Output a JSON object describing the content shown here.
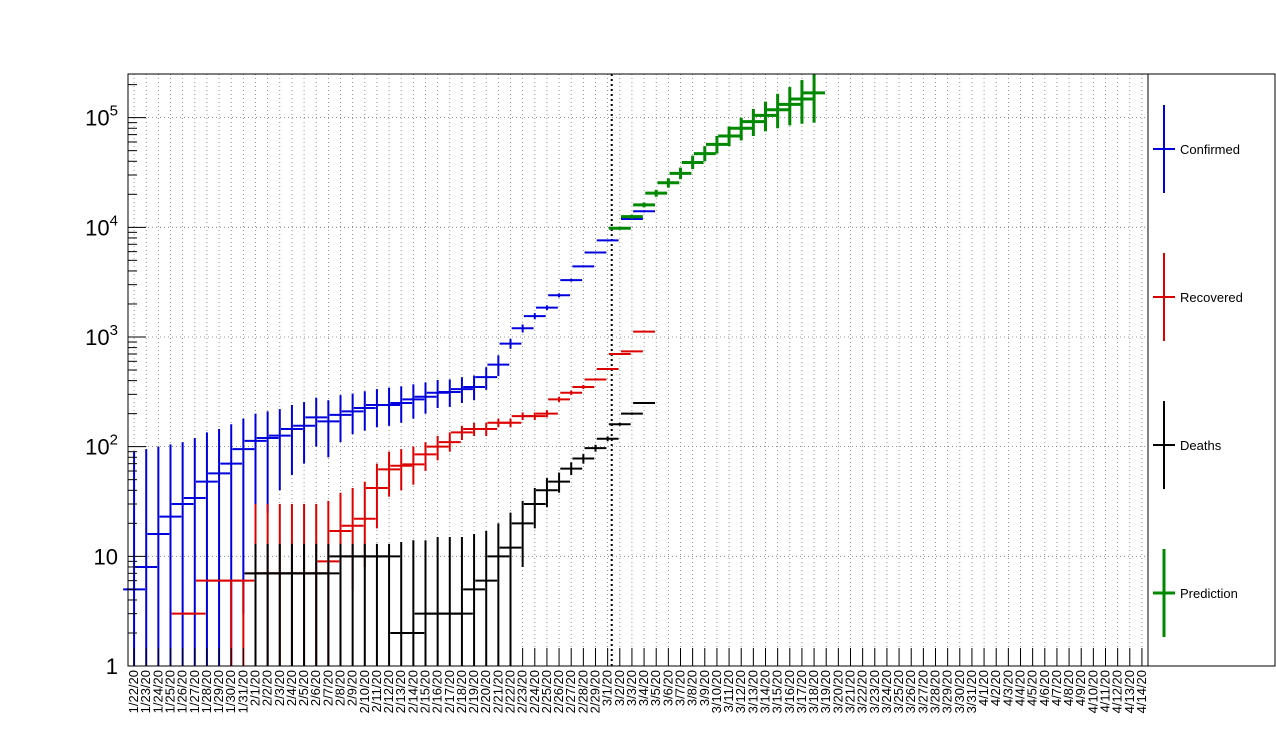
{
  "chart_data": {
    "type": "scatter",
    "y_scale": "log",
    "ylim": [
      1,
      250000
    ],
    "grid": true,
    "legend_position": "right",
    "title": "",
    "xlabel": "",
    "ylabel": "",
    "y_ticks": [
      {
        "value": 1,
        "base": "1",
        "exp": ""
      },
      {
        "value": 10,
        "base": "10",
        "exp": ""
      },
      {
        "value": 100,
        "base": "10",
        "exp": "2"
      },
      {
        "value": 1000,
        "base": "10",
        "exp": "3"
      },
      {
        "value": 10000,
        "base": "10",
        "exp": "4"
      },
      {
        "value": 100000,
        "base": "10",
        "exp": "5"
      }
    ],
    "x_labels": [
      "1/22/20",
      "1/23/20",
      "1/24/20",
      "1/25/20",
      "1/26/20",
      "1/27/20",
      "1/28/20",
      "1/29/20",
      "1/30/20",
      "1/31/20",
      "2/1/20",
      "2/2/20",
      "2/3/20",
      "2/4/20",
      "2/5/20",
      "2/6/20",
      "2/7/20",
      "2/8/20",
      "2/9/20",
      "2/10/20",
      "2/11/20",
      "2/12/20",
      "2/13/20",
      "2/14/20",
      "2/15/20",
      "2/16/20",
      "2/17/20",
      "2/18/20",
      "2/19/20",
      "2/20/20",
      "2/21/20",
      "2/22/20",
      "2/23/20",
      "2/24/20",
      "2/25/20",
      "2/26/20",
      "2/27/20",
      "2/28/20",
      "2/29/20",
      "3/1/20",
      "3/2/20",
      "3/3/20",
      "3/4/20",
      "3/5/20",
      "3/6/20",
      "3/7/20",
      "3/8/20",
      "3/9/20",
      "3/10/20",
      "3/11/20",
      "3/12/20",
      "3/13/20",
      "3/14/20",
      "3/15/20",
      "3/16/20",
      "3/17/20",
      "3/18/20",
      "3/19/20",
      "3/20/20",
      "3/21/20",
      "3/22/20",
      "3/23/20",
      "3/24/20",
      "3/25/20",
      "3/26/20",
      "3/27/20",
      "3/28/20",
      "3/29/20",
      "3/30/20",
      "3/31/20",
      "4/1/20",
      "4/2/20",
      "4/3/20",
      "4/4/20",
      "4/5/20",
      "4/6/20",
      "4/7/20",
      "4/8/20",
      "4/9/20",
      "4/10/20",
      "4/11/20",
      "4/12/20",
      "4/13/20",
      "4/14/20"
    ],
    "vertical_marker": {
      "date": "3/2/20",
      "style": "dotted",
      "color": "#000000"
    },
    "series": [
      {
        "name": "Confirmed",
        "color": "#0000dd",
        "points": [
          {
            "x": "1/22/20",
            "y": 5,
            "lo": 1,
            "hi": 90
          },
          {
            "x": "1/23/20",
            "y": 8,
            "lo": 1,
            "hi": 95
          },
          {
            "x": "1/24/20",
            "y": 16,
            "lo": 1,
            "hi": 100
          },
          {
            "x": "1/25/20",
            "y": 23,
            "lo": 1,
            "hi": 105
          },
          {
            "x": "1/26/20",
            "y": 30,
            "lo": 1,
            "hi": 110
          },
          {
            "x": "1/27/20",
            "y": 34,
            "lo": 1,
            "hi": 120
          },
          {
            "x": "1/28/20",
            "y": 48,
            "lo": 1,
            "hi": 135
          },
          {
            "x": "1/29/20",
            "y": 57,
            "lo": 1,
            "hi": 145
          },
          {
            "x": "1/30/20",
            "y": 70,
            "lo": 1,
            "hi": 160
          },
          {
            "x": "1/31/20",
            "y": 95,
            "lo": 3,
            "hi": 180
          },
          {
            "x": "2/1/20",
            "y": 113,
            "lo": 14,
            "hi": 200
          },
          {
            "x": "2/2/20",
            "y": 120,
            "lo": 25,
            "hi": 210
          },
          {
            "x": "2/3/20",
            "y": 126,
            "lo": 40,
            "hi": 220
          },
          {
            "x": "2/4/20",
            "y": 145,
            "lo": 55,
            "hi": 240
          },
          {
            "x": "2/5/20",
            "y": 155,
            "lo": 70,
            "hi": 255
          },
          {
            "x": "2/6/20",
            "y": 185,
            "lo": 100,
            "hi": 280
          },
          {
            "x": "2/7/20",
            "y": 170,
            "lo": 80,
            "hi": 265
          },
          {
            "x": "2/8/20",
            "y": 195,
            "lo": 110,
            "hi": 295
          },
          {
            "x": "2/9/20",
            "y": 210,
            "lo": 130,
            "hi": 305
          },
          {
            "x": "2/10/20",
            "y": 225,
            "lo": 140,
            "hi": 320
          },
          {
            "x": "2/11/20",
            "y": 240,
            "lo": 150,
            "hi": 335
          },
          {
            "x": "2/12/20",
            "y": 240,
            "lo": 155,
            "hi": 345
          },
          {
            "x": "2/13/20",
            "y": 250,
            "lo": 165,
            "hi": 355
          },
          {
            "x": "2/14/20",
            "y": 270,
            "lo": 180,
            "hi": 370
          },
          {
            "x": "2/15/20",
            "y": 285,
            "lo": 200,
            "hi": 385
          },
          {
            "x": "2/16/20",
            "y": 310,
            "lo": 225,
            "hi": 405
          },
          {
            "x": "2/17/20",
            "y": 315,
            "lo": 230,
            "hi": 410
          },
          {
            "x": "2/18/20",
            "y": 335,
            "lo": 250,
            "hi": 430
          },
          {
            "x": "2/19/20",
            "y": 350,
            "lo": 265,
            "hi": 445
          },
          {
            "x": "2/20/20",
            "y": 430,
            "lo": 330,
            "hi": 530
          },
          {
            "x": "2/21/20",
            "y": 560,
            "lo": 440,
            "hi": 680
          },
          {
            "x": "2/22/20",
            "y": 870,
            "lo": 780,
            "hi": 960
          },
          {
            "x": "2/23/20",
            "y": 1200,
            "lo": 1100,
            "hi": 1300
          },
          {
            "x": "2/24/20",
            "y": 1550,
            "lo": 1450,
            "hi": 1650
          },
          {
            "x": "2/25/20",
            "y": 1850,
            "lo": 1760,
            "hi": 1940
          },
          {
            "x": "2/26/20",
            "y": 2400,
            "lo": 2300,
            "hi": 2500
          },
          {
            "x": "2/27/20",
            "y": 3300,
            "lo": 3200,
            "hi": 3400
          },
          {
            "x": "2/28/20",
            "y": 4400,
            "lo": 4300,
            "hi": 4500
          },
          {
            "x": "2/29/20",
            "y": 5900,
            "lo": 5800,
            "hi": 6000
          },
          {
            "x": "3/1/20",
            "y": 7600,
            "lo": 7450,
            "hi": 7750
          },
          {
            "x": "3/2/20",
            "y": 9800,
            "lo": 9600,
            "hi": 10000
          },
          {
            "x": "3/3/20",
            "y": 11900,
            "lo": 11700,
            "hi": 12100
          },
          {
            "x": "3/4/20",
            "y": 14000,
            "lo": 13700,
            "hi": 14300
          }
        ]
      },
      {
        "name": "Recovered",
        "color": "#dd0000",
        "points": [
          {
            "x": "1/26/20",
            "y": 3,
            "lo": 3,
            "hi": 3
          },
          {
            "x": "1/27/20",
            "y": 3,
            "lo": 3,
            "hi": 3
          },
          {
            "x": "1/28/20",
            "y": 6,
            "lo": 6,
            "hi": 6
          },
          {
            "x": "1/29/20",
            "y": 6,
            "lo": 6,
            "hi": 6
          },
          {
            "x": "1/30/20",
            "y": 6,
            "lo": 1,
            "hi": 6
          },
          {
            "x": "1/31/20",
            "y": 6,
            "lo": 1,
            "hi": 6
          },
          {
            "x": "2/1/20",
            "y": 7,
            "lo": 1,
            "hi": 30
          },
          {
            "x": "2/2/20",
            "y": 7,
            "lo": 1,
            "hi": 30
          },
          {
            "x": "2/3/20",
            "y": 7,
            "lo": 1,
            "hi": 30
          },
          {
            "x": "2/4/20",
            "y": 7,
            "lo": 1,
            "hi": 30
          },
          {
            "x": "2/5/20",
            "y": 7,
            "lo": 1,
            "hi": 30
          },
          {
            "x": "2/6/20",
            "y": 7,
            "lo": 1,
            "hi": 30
          },
          {
            "x": "2/7/20",
            "y": 9,
            "lo": 1,
            "hi": 32
          },
          {
            "x": "2/8/20",
            "y": 17,
            "lo": 1,
            "hi": 38
          },
          {
            "x": "2/9/20",
            "y": 19,
            "lo": 5,
            "hi": 42
          },
          {
            "x": "2/10/20",
            "y": 22,
            "lo": 8,
            "hi": 48
          },
          {
            "x": "2/11/20",
            "y": 42,
            "lo": 18,
            "hi": 70
          },
          {
            "x": "2/12/20",
            "y": 62,
            "lo": 35,
            "hi": 90
          },
          {
            "x": "2/13/20",
            "y": 67,
            "lo": 40,
            "hi": 95
          },
          {
            "x": "2/14/20",
            "y": 69,
            "lo": 45,
            "hi": 100
          },
          {
            "x": "2/15/20",
            "y": 85,
            "lo": 60,
            "hi": 110
          },
          {
            "x": "2/16/20",
            "y": 100,
            "lo": 75,
            "hi": 125
          },
          {
            "x": "2/17/20",
            "y": 110,
            "lo": 90,
            "hi": 135
          },
          {
            "x": "2/18/20",
            "y": 135,
            "lo": 115,
            "hi": 155
          },
          {
            "x": "2/19/20",
            "y": 145,
            "lo": 125,
            "hi": 165
          },
          {
            "x": "2/20/20",
            "y": 145,
            "lo": 125,
            "hi": 165
          },
          {
            "x": "2/21/20",
            "y": 165,
            "lo": 150,
            "hi": 180
          },
          {
            "x": "2/22/20",
            "y": 165,
            "lo": 150,
            "hi": 180
          },
          {
            "x": "2/23/20",
            "y": 190,
            "lo": 175,
            "hi": 205
          },
          {
            "x": "2/24/20",
            "y": 190,
            "lo": 175,
            "hi": 205
          },
          {
            "x": "2/25/20",
            "y": 200,
            "lo": 185,
            "hi": 215
          },
          {
            "x": "2/26/20",
            "y": 270,
            "lo": 255,
            "hi": 285
          },
          {
            "x": "2/27/20",
            "y": 310,
            "lo": 295,
            "hi": 325
          },
          {
            "x": "2/28/20",
            "y": 350,
            "lo": 335,
            "hi": 365
          },
          {
            "x": "2/29/20",
            "y": 410,
            "lo": 400,
            "hi": 420
          },
          {
            "x": "3/1/20",
            "y": 510,
            "lo": 500,
            "hi": 520
          },
          {
            "x": "3/2/20",
            "y": 700,
            "lo": 690,
            "hi": 710
          },
          {
            "x": "3/3/20",
            "y": 740,
            "lo": 730,
            "hi": 750
          },
          {
            "x": "3/4/20",
            "y": 1120,
            "lo": 1110,
            "hi": 1130
          }
        ]
      },
      {
        "name": "Deaths",
        "color": "#000000",
        "points": [
          {
            "x": "2/1/20",
            "y": 7,
            "lo": 1,
            "hi": 13
          },
          {
            "x": "2/2/20",
            "y": 7,
            "lo": 1,
            "hi": 13
          },
          {
            "x": "2/3/20",
            "y": 7,
            "lo": 1,
            "hi": 13
          },
          {
            "x": "2/4/20",
            "y": 7,
            "lo": 1,
            "hi": 13
          },
          {
            "x": "2/5/20",
            "y": 7,
            "lo": 1,
            "hi": 13
          },
          {
            "x": "2/6/20",
            "y": 7,
            "lo": 1,
            "hi": 13
          },
          {
            "x": "2/7/20",
            "y": 7,
            "lo": 1,
            "hi": 13
          },
          {
            "x": "2/8/20",
            "y": 10,
            "lo": 1,
            "hi": 13
          },
          {
            "x": "2/9/20",
            "y": 10,
            "lo": 1,
            "hi": 13
          },
          {
            "x": "2/10/20",
            "y": 10,
            "lo": 1,
            "hi": 13
          },
          {
            "x": "2/11/20",
            "y": 10,
            "lo": 1,
            "hi": 13
          },
          {
            "x": "2/12/20",
            "y": 10,
            "lo": 1,
            "hi": 13
          },
          {
            "x": "2/13/20",
            "y": 2,
            "lo": 1,
            "hi": 13.5
          },
          {
            "x": "2/14/20",
            "y": 2,
            "lo": 1,
            "hi": 14
          },
          {
            "x": "2/15/20",
            "y": 3,
            "lo": 1,
            "hi": 14
          },
          {
            "x": "2/16/20",
            "y": 3,
            "lo": 1,
            "hi": 15
          },
          {
            "x": "2/17/20",
            "y": 3,
            "lo": 1,
            "hi": 15
          },
          {
            "x": "2/18/20",
            "y": 3,
            "lo": 1,
            "hi": 15
          },
          {
            "x": "2/19/20",
            "y": 5,
            "lo": 1,
            "hi": 16
          },
          {
            "x": "2/20/20",
            "y": 6,
            "lo": 1,
            "hi": 17
          },
          {
            "x": "2/21/20",
            "y": 10,
            "lo": 1,
            "hi": 20
          },
          {
            "x": "2/22/20",
            "y": 12,
            "lo": 1,
            "hi": 25
          },
          {
            "x": "2/23/20",
            "y": 20,
            "lo": 8,
            "hi": 32
          },
          {
            "x": "2/24/20",
            "y": 30,
            "lo": 18,
            "hi": 42
          },
          {
            "x": "2/25/20",
            "y": 40,
            "lo": 28,
            "hi": 52
          },
          {
            "x": "2/26/20",
            "y": 48,
            "lo": 38,
            "hi": 58
          },
          {
            "x": "2/27/20",
            "y": 63,
            "lo": 55,
            "hi": 72
          },
          {
            "x": "2/28/20",
            "y": 78,
            "lo": 70,
            "hi": 86
          },
          {
            "x": "2/29/20",
            "y": 97,
            "lo": 90,
            "hi": 104
          },
          {
            "x": "3/1/20",
            "y": 118,
            "lo": 112,
            "hi": 124
          },
          {
            "x": "3/2/20",
            "y": 160,
            "lo": 155,
            "hi": 165
          },
          {
            "x": "3/3/20",
            "y": 200,
            "lo": 195,
            "hi": 205
          },
          {
            "x": "3/4/20",
            "y": 250,
            "lo": 245,
            "hi": 255
          }
        ]
      },
      {
        "name": "Prediction",
        "color": "#008800",
        "points": [
          {
            "x": "3/2/20",
            "y": 9800,
            "lo": 9500,
            "hi": 10100
          },
          {
            "x": "3/3/20",
            "y": 12500,
            "lo": 12000,
            "hi": 13000
          },
          {
            "x": "3/4/20",
            "y": 16000,
            "lo": 15200,
            "hi": 16800
          },
          {
            "x": "3/5/20",
            "y": 20500,
            "lo": 19000,
            "hi": 22000
          },
          {
            "x": "3/6/20",
            "y": 25500,
            "lo": 23000,
            "hi": 28000
          },
          {
            "x": "3/7/20",
            "y": 31000,
            "lo": 27500,
            "hi": 35000
          },
          {
            "x": "3/8/20",
            "y": 39000,
            "lo": 34000,
            "hi": 45000
          },
          {
            "x": "3/9/20",
            "y": 47000,
            "lo": 40000,
            "hi": 55000
          },
          {
            "x": "3/10/20",
            "y": 57000,
            "lo": 47000,
            "hi": 68000
          },
          {
            "x": "3/11/20",
            "y": 68000,
            "lo": 55000,
            "hi": 83000
          },
          {
            "x": "3/12/20",
            "y": 80000,
            "lo": 62000,
            "hi": 100000
          },
          {
            "x": "3/13/20",
            "y": 92000,
            "lo": 68000,
            "hi": 120000
          },
          {
            "x": "3/14/20",
            "y": 105000,
            "lo": 75000,
            "hi": 140000
          },
          {
            "x": "3/15/20",
            "y": 118000,
            "lo": 80000,
            "hi": 165000
          },
          {
            "x": "3/16/20",
            "y": 132000,
            "lo": 85000,
            "hi": 190000
          },
          {
            "x": "3/17/20",
            "y": 148000,
            "lo": 88000,
            "hi": 220000
          },
          {
            "x": "3/18/20",
            "y": 168000,
            "lo": 90000,
            "hi": 250000
          }
        ]
      }
    ]
  }
}
